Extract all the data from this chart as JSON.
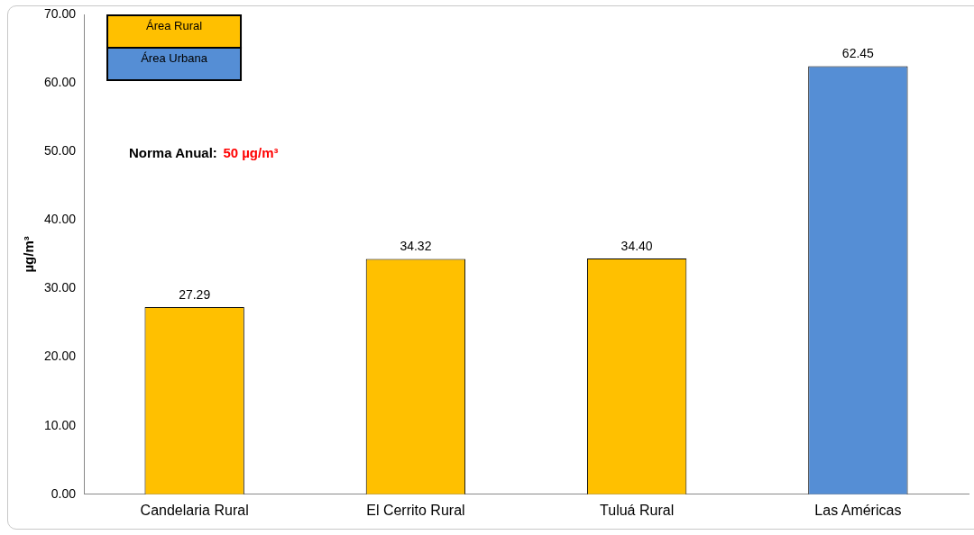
{
  "chart_data": {
    "type": "bar",
    "ylabel": "µg/m³",
    "categories": [
      "Candelaria Rural",
      "El Cerrito Rural",
      "Tuluá Rural",
      "Las Américas"
    ],
    "stacked": true,
    "series": [
      {
        "name": "Área Rural",
        "color": "#ffc000",
        "values": [
          27.29,
          34.32,
          34.4,
          null
        ],
        "value_labels": [
          "27.29",
          "34.32",
          "34.40",
          null
        ]
      },
      {
        "name": "Área Urbana",
        "color": "#558ed5",
        "values": [
          null,
          null,
          null,
          62.45
        ],
        "value_labels": [
          null,
          null,
          null,
          "62.45"
        ]
      }
    ],
    "ylim": [
      0,
      70
    ],
    "yticks": [
      {
        "value": 0,
        "label": "0.00"
      },
      {
        "value": 10,
        "label": "10.00"
      },
      {
        "value": 20,
        "label": "20.00"
      },
      {
        "value": 30,
        "label": "30.00"
      },
      {
        "value": 40,
        "label": "40.00"
      },
      {
        "value": 50,
        "label": "50.00"
      },
      {
        "value": 60,
        "label": "60.00"
      },
      {
        "value": 70,
        "label": "70.00"
      }
    ],
    "grid": false,
    "legend": "top left",
    "annotations": [
      "Norma Anual:",
      "50 µg/m³"
    ]
  }
}
